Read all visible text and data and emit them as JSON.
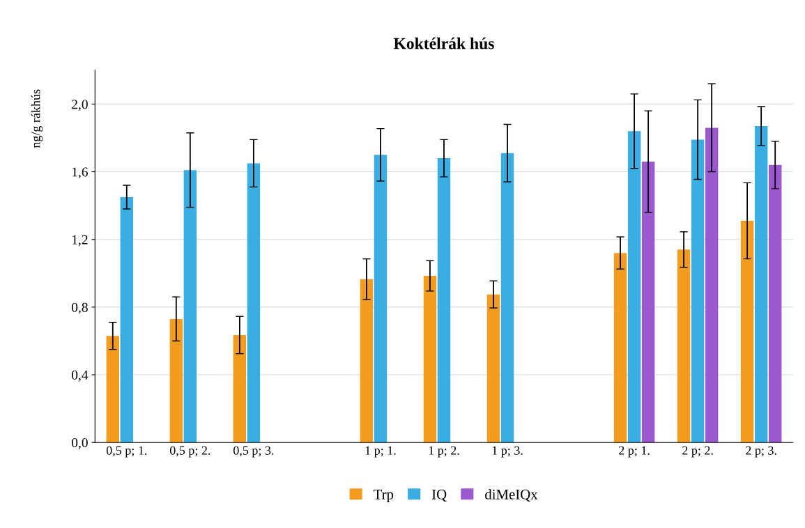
{
  "chart_data": {
    "type": "bar",
    "title": "Koktélrák hús",
    "ylabel": "ng/g rákhús",
    "categories": [
      "0,5 p; 1.",
      "0,5 p; 2.",
      "0,5 p; 3.",
      null,
      "1 p; 1.",
      "1 p; 2.",
      "1 p; 3.",
      null,
      "2 p; 1.",
      "2 p; 2.",
      "2 p; 3."
    ],
    "series": [
      {
        "name": "Trp",
        "color": "#f39c1f",
        "values": [
          0.63,
          0.73,
          0.635,
          null,
          0.965,
          0.985,
          0.875,
          null,
          1.12,
          1.14,
          1.31
        ],
        "errors": [
          0.08,
          0.13,
          0.11,
          null,
          0.12,
          0.09,
          0.08,
          null,
          0.095,
          0.105,
          0.225
        ]
      },
      {
        "name": "IQ",
        "color": "#3aaee2",
        "values": [
          1.45,
          1.61,
          1.65,
          null,
          1.7,
          1.68,
          1.71,
          null,
          1.84,
          1.79,
          1.87
        ],
        "errors": [
          0.07,
          0.22,
          0.14,
          null,
          0.155,
          0.11,
          0.17,
          null,
          0.22,
          0.235,
          0.115
        ]
      },
      {
        "name": "diMeIQx",
        "color": "#9b59d0",
        "values": [
          0,
          0,
          0,
          null,
          0,
          0,
          0,
          null,
          1.66,
          1.86,
          1.64
        ],
        "errors": [
          null,
          null,
          null,
          null,
          null,
          null,
          null,
          null,
          0.3,
          0.26,
          0.14
        ]
      }
    ],
    "ylim": [
      0,
      2.2
    ],
    "yticks": [
      {
        "value": 0,
        "label": "0,0"
      },
      {
        "value": 0.4,
        "label": "0,4"
      },
      {
        "value": 0.8,
        "label": "0,8"
      },
      {
        "value": 1.2,
        "label": "1,2"
      },
      {
        "value": 1.6,
        "label": "1,6"
      },
      {
        "value": 2.0,
        "label": "2,0"
      }
    ],
    "grid": "y",
    "legend": "bottom"
  }
}
